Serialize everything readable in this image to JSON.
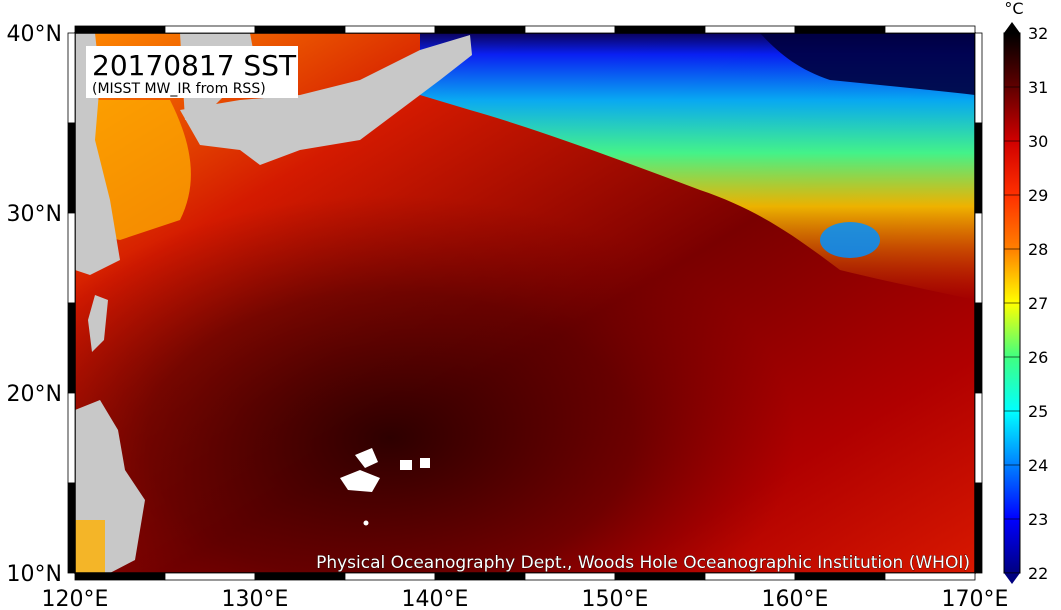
{
  "title": {
    "main": "20170817 SST",
    "sub": "(MISST MW_IR from RSS)"
  },
  "credit": "Physical Oceanography Dept., Woods Hole Oceanographic Institution (WHOI)",
  "map": {
    "lon_range": [
      120,
      170
    ],
    "lat_range": [
      10,
      40
    ],
    "lon_ticks": [
      "120°E",
      "130°E",
      "140°E",
      "150°E",
      "160°E",
      "170°E"
    ],
    "lat_ticks": [
      "10°N",
      "20°N",
      "30°N",
      "40°N"
    ],
    "land_color": "#c8c8c8",
    "missing_color": "#ffffff"
  },
  "colorbar": {
    "unit": "°C",
    "min": 22,
    "max": 32,
    "labels": [
      "22",
      "23",
      "24",
      "25",
      "26",
      "27",
      "28",
      "29",
      "30",
      "31",
      "32"
    ],
    "colors": [
      "#000080",
      "#0000ff",
      "#0080ff",
      "#00ffff",
      "#40ff80",
      "#ffff00",
      "#ff8000",
      "#ff3000",
      "#d00000",
      "#600000",
      "#000000"
    ]
  }
}
